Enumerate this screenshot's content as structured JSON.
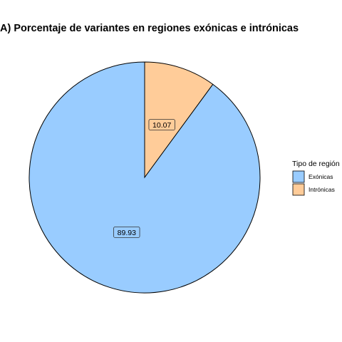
{
  "chart_data": {
    "type": "pie",
    "title": "A) Porcentaje de variantes en regiones exónicas e intrónicas",
    "slices": [
      {
        "label": "Exónicas",
        "value": 89.93,
        "color": "#99ccff"
      },
      {
        "label": "Intrónicas",
        "value": 10.07,
        "color": "#ffcc99"
      }
    ],
    "legend": {
      "title": "Tipo de región",
      "placement": "right"
    }
  }
}
